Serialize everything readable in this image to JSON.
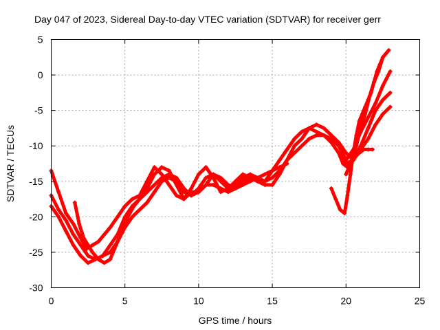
{
  "chart_data": {
    "type": "scatter",
    "title": "Day 047 of 2023, Sidereal Day-to-day VTEC variation (SDTVAR) for receiver gerr",
    "xlabel": "GPS time / hours",
    "ylabel": "SDTVAR / TECUs",
    "xlim": [
      0,
      25
    ],
    "ylim": [
      -30,
      5
    ],
    "xticks": [
      0,
      5,
      10,
      15,
      20,
      25
    ],
    "yticks": [
      -30,
      -25,
      -20,
      -15,
      -10,
      -5,
      0,
      5
    ],
    "grid": true,
    "marker": "plus",
    "color": "#ff0000",
    "series": [
      {
        "x": [
          0,
          0.5,
          1.0,
          1.5,
          2.0,
          2.4,
          2.8,
          3.2,
          3.6,
          4.0,
          4.5,
          5.0,
          5.5,
          6.0,
          6.5,
          7.0,
          7.5,
          8.0,
          8.5,
          9.0,
          9.5,
          10.0,
          10.5,
          11.0,
          11.5,
          12.0,
          12.5,
          13.0,
          13.5,
          14.0,
          14.5,
          15.0,
          15.5,
          16.0,
          16.5,
          17.0,
          17.5,
          18.0,
          18.5,
          19.0,
          19.5,
          20.0,
          20.5,
          21.0,
          21.5,
          22.0,
          22.5,
          23.0
        ],
        "y": [
          -13.5,
          -16.5,
          -19.5,
          -21.0,
          -23.0,
          -24.5,
          -24.0,
          -23.5,
          -22.5,
          -21.5,
          -20.0,
          -18.5,
          -17.5,
          -17.0,
          -15.0,
          -13.0,
          -14.0,
          -15.5,
          -17.0,
          -17.5,
          -16.5,
          -16.5,
          -15.5,
          -14.0,
          -15.0,
          -16.0,
          -15.5,
          -14.5,
          -14.0,
          -14.5,
          -15.0,
          -13.5,
          -12.0,
          -10.5,
          -9.0,
          -8.0,
          -7.5,
          -8.0,
          -8.5,
          -9.0,
          -10.0,
          -12.0,
          -10.5,
          -8.0,
          -6.0,
          -4.0,
          -1.5,
          0.5
        ]
      },
      {
        "x": [
          0,
          0.5,
          1.0,
          1.5,
          2.0,
          2.5,
          3.0,
          3.5,
          4.0,
          4.5,
          5.0,
          5.5,
          6.0,
          6.5,
          7.0,
          7.5,
          8.0,
          8.5,
          9.0,
          9.5,
          10.0,
          10.5,
          11.0,
          11.5,
          12.0,
          12.5,
          13.0,
          13.5,
          14.0,
          14.5,
          15.0,
          15.5,
          16.0,
          16.5,
          17.0,
          17.5,
          18.0,
          18.5,
          19.0,
          19.5,
          20.0,
          20.5,
          21.0,
          21.5,
          22.0,
          22.5,
          23.0
        ],
        "y": [
          -17.0,
          -19.0,
          -20.5,
          -22.5,
          -24.0,
          -25.5,
          -26.0,
          -25.5,
          -24.0,
          -22.5,
          -20.0,
          -18.5,
          -17.5,
          -16.0,
          -14.0,
          -13.0,
          -13.5,
          -15.5,
          -17.5,
          -16.0,
          -14.0,
          -13.0,
          -14.5,
          -16.5,
          -16.0,
          -15.0,
          -14.0,
          -14.5,
          -15.0,
          -15.5,
          -15.5,
          -14.0,
          -12.0,
          -10.0,
          -9.0,
          -7.5,
          -7.0,
          -7.5,
          -8.5,
          -9.5,
          -11.0,
          -12.0,
          -10.0,
          -7.5,
          -5.0,
          -3.5,
          -2.5
        ]
      },
      {
        "x": [
          0,
          0.5,
          1.0,
          1.5,
          2.0,
          2.5,
          3.0,
          3.5,
          4.0,
          4.5,
          5.0,
          5.5,
          6.0,
          6.5,
          7.0,
          7.5,
          8.0,
          8.5,
          9.0,
          9.5,
          10.0,
          10.5,
          11.0,
          11.5,
          12.0,
          12.5,
          13.0,
          13.5,
          14.0,
          14.5,
          15.0,
          15.5,
          16.0,
          16.5,
          17.0,
          17.5,
          18.0,
          18.5,
          19.0,
          19.5,
          20.0,
          20.5,
          21.0,
          21.5,
          22.0,
          22.5,
          23.0
        ],
        "y": [
          -18.5,
          -20.0,
          -22.0,
          -24.0,
          -25.5,
          -26.5,
          -26.0,
          -25.5,
          -25.0,
          -23.5,
          -21.5,
          -20.0,
          -19.0,
          -18.0,
          -16.5,
          -15.0,
          -14.5,
          -15.0,
          -16.5,
          -17.0,
          -16.5,
          -15.5,
          -15.5,
          -16.0,
          -16.5,
          -16.0,
          -15.0,
          -14.5,
          -15.0,
          -15.0,
          -14.5,
          -13.5,
          -12.0,
          -11.0,
          -10.0,
          -9.0,
          -8.5,
          -8.5,
          -9.5,
          -11.0,
          -12.5,
          -12.0,
          -10.5,
          -9.0,
          -7.0,
          -5.5,
          -4.5
        ]
      },
      {
        "x": [
          1.6,
          1.9,
          2.2,
          2.5,
          2.8,
          3.2,
          3.6,
          4.0,
          4.4,
          4.8,
          5.2,
          5.6,
          6.0,
          6.5,
          7.0,
          7.5,
          8.0,
          8.5,
          9.0,
          9.5,
          10.0,
          10.5,
          11.0,
          11.5,
          12.0,
          12.5,
          13.0,
          13.5,
          14.0,
          14.5,
          15.0,
          15.5,
          16.0
        ],
        "y": [
          -18.0,
          -21.0,
          -23.0,
          -24.0,
          -25.0,
          -26.0,
          -26.5,
          -26.0,
          -24.0,
          -22.0,
          -20.0,
          -18.5,
          -17.5,
          -16.5,
          -15.5,
          -14.5,
          -14.0,
          -14.5,
          -16.0,
          -17.0,
          -16.0,
          -14.5,
          -14.0,
          -14.5,
          -15.5,
          -16.0,
          -15.5,
          -15.0,
          -14.5,
          -14.0,
          -13.5,
          -13.0,
          -12.5
        ]
      },
      {
        "x": [
          19.0,
          19.3,
          19.6,
          19.9,
          20.1,
          20.3,
          20.5,
          20.7,
          20.9,
          21.1,
          21.3,
          21.5,
          21.7,
          21.9,
          22.1,
          22.3,
          22.5,
          22.7,
          22.9
        ],
        "y": [
          -16.0,
          -17.5,
          -19.0,
          -19.5,
          -17.0,
          -14.0,
          -11.0,
          -8.5,
          -6.5,
          -5.5,
          -4.5,
          -3.5,
          -2.5,
          -1.0,
          0.5,
          1.5,
          2.5,
          3.0,
          3.5
        ]
      },
      {
        "x": [
          19.5,
          19.8,
          20.1,
          20.4,
          20.7,
          21.0,
          21.3,
          21.6,
          21.9,
          22.2,
          22.5
        ],
        "y": [
          -11.0,
          -12.5,
          -13.0,
          -12.0,
          -10.0,
          -7.5,
          -5.5,
          -3.0,
          -1.0,
          0.5,
          2.5
        ]
      },
      {
        "x": [
          20.0,
          20.3,
          20.6,
          20.9,
          21.2,
          21.5,
          21.8
        ],
        "y": [
          -14.0,
          -12.5,
          -11.5,
          -11.0,
          -10.5,
          -10.5,
          -10.5
        ]
      }
    ]
  }
}
